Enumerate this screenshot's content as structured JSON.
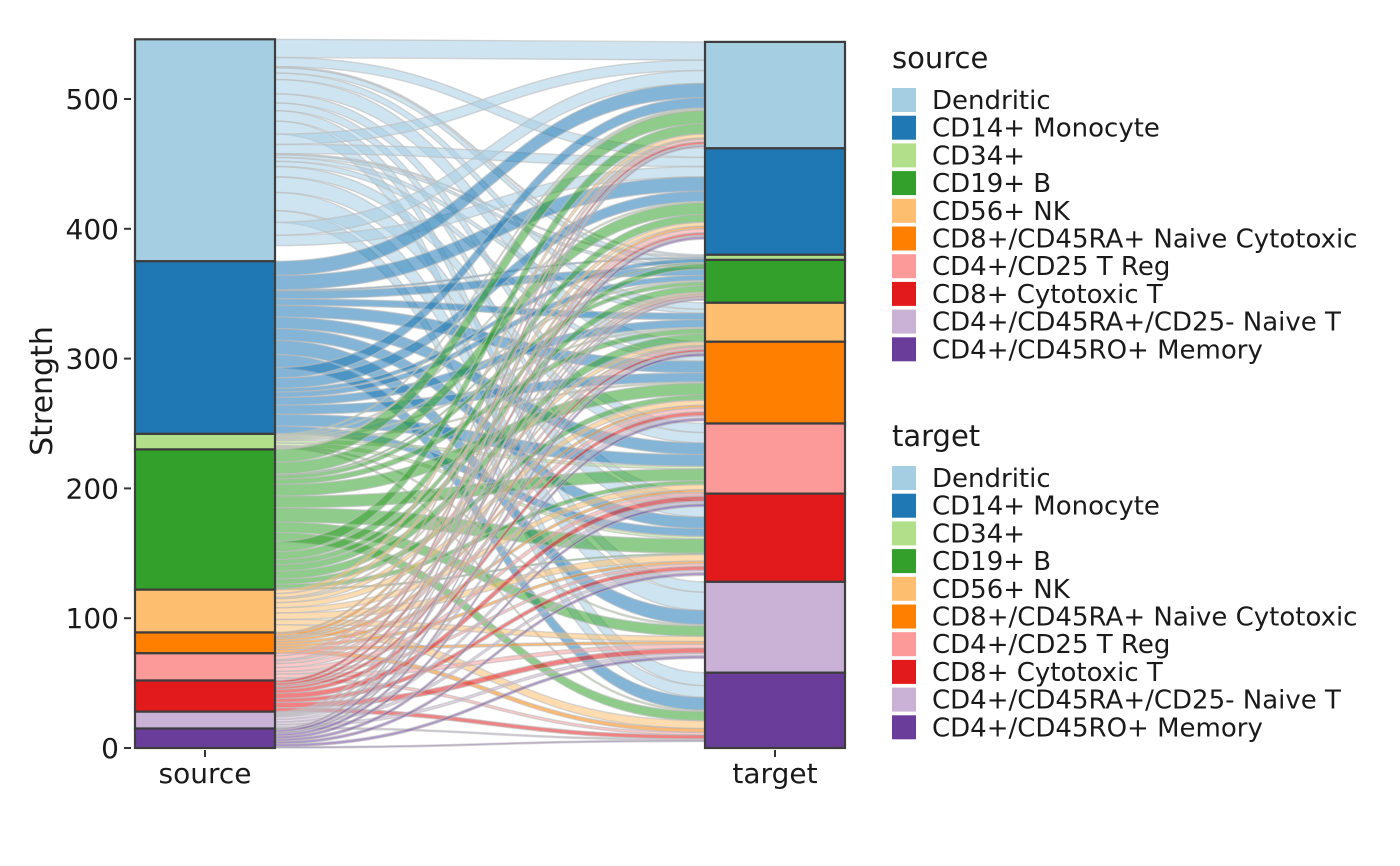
{
  "chart_data": {
    "type": "alluvial",
    "title": "",
    "xlabel": "",
    "ylabel": "Strength",
    "ylim": [
      0,
      550
    ],
    "y_ticks": [
      0,
      100,
      200,
      300,
      400,
      500
    ],
    "axes": [
      "source",
      "target"
    ],
    "categories": [
      "Dendritic",
      "CD14+ Monocyte",
      "CD34+",
      "CD19+ B",
      "CD56+ NK",
      "CD8+/CD45RA+ Naive Cytotoxic",
      "CD4+/CD25 T Reg",
      "CD8+ Cytotoxic T",
      "CD4+/CD45RA+/CD25- Naive T",
      "CD4+/CD45RO+ Memory"
    ],
    "colors": [
      "#A6CEE3",
      "#1F78B4",
      "#B2DF8A",
      "#33A02C",
      "#FDBF6F",
      "#FF7F00",
      "#FB9A99",
      "#E31A1C",
      "#CAB2D6",
      "#6A3D9A"
    ],
    "source_totals": [
      171,
      133,
      12,
      108,
      33,
      16,
      21,
      24,
      13,
      15
    ],
    "target_totals": [
      82,
      82,
      4,
      33,
      30,
      63,
      54,
      68,
      70,
      58
    ],
    "flows": [
      [
        14,
        7,
        1,
        4,
        5,
        11,
        7,
        6,
        8,
        10,
        8,
        7,
        1,
        2,
        3,
        4,
        8,
        12,
        14,
        9,
        10,
        8
      ],
      [
        11,
        11,
        1,
        6,
        5,
        9,
        9,
        9,
        11,
        10,
        8,
        8,
        3,
        4,
        6,
        7,
        9,
        6
      ],
      [
        1,
        1,
        0,
        1,
        1,
        1,
        2,
        2,
        1,
        1,
        1
      ],
      [
        10,
        9,
        1,
        3,
        4,
        9,
        9,
        11,
        8,
        7,
        8,
        6,
        4,
        5,
        6,
        4,
        3,
        1
      ],
      [
        3,
        3,
        0,
        1,
        3,
        4,
        4,
        5,
        4,
        6
      ],
      [
        1,
        2,
        0,
        1,
        1,
        2,
        2,
        2,
        2,
        3
      ],
      [
        2,
        3,
        0,
        1,
        2,
        3,
        3,
        2,
        3,
        2
      ],
      [
        2,
        2,
        0,
        1,
        2,
        3,
        4,
        3,
        4,
        3
      ],
      [
        1,
        1,
        0,
        1,
        1,
        2,
        2,
        2,
        2,
        1
      ],
      [
        1,
        2,
        0,
        1,
        2,
        2,
        2,
        2,
        2,
        1
      ]
    ],
    "legend": [
      {
        "title": "source",
        "position": "right-top",
        "entries": [
          "Dendritic",
          "CD14+ Monocyte",
          "CD34+",
          "CD19+ B",
          "CD56+ NK",
          "CD8+/CD45RA+ Naive Cytotoxic",
          "CD4+/CD25 T Reg",
          "CD8+ Cytotoxic T",
          "CD4+/CD45RA+/CD25- Naive T",
          "CD4+/CD45RO+ Memory"
        ]
      },
      {
        "title": "target",
        "position": "right-middle",
        "entries": [
          "Dendritic",
          "CD14+ Monocyte",
          "CD34+",
          "CD19+ B",
          "CD56+ NK",
          "CD8+/CD45RA+ Naive Cytotoxic",
          "CD4+/CD25 T Reg",
          "CD8+ Cytotoxic T",
          "CD4+/CD45RA+/CD25- Naive T",
          "CD4+/CD45RO+ Memory"
        ]
      }
    ]
  }
}
